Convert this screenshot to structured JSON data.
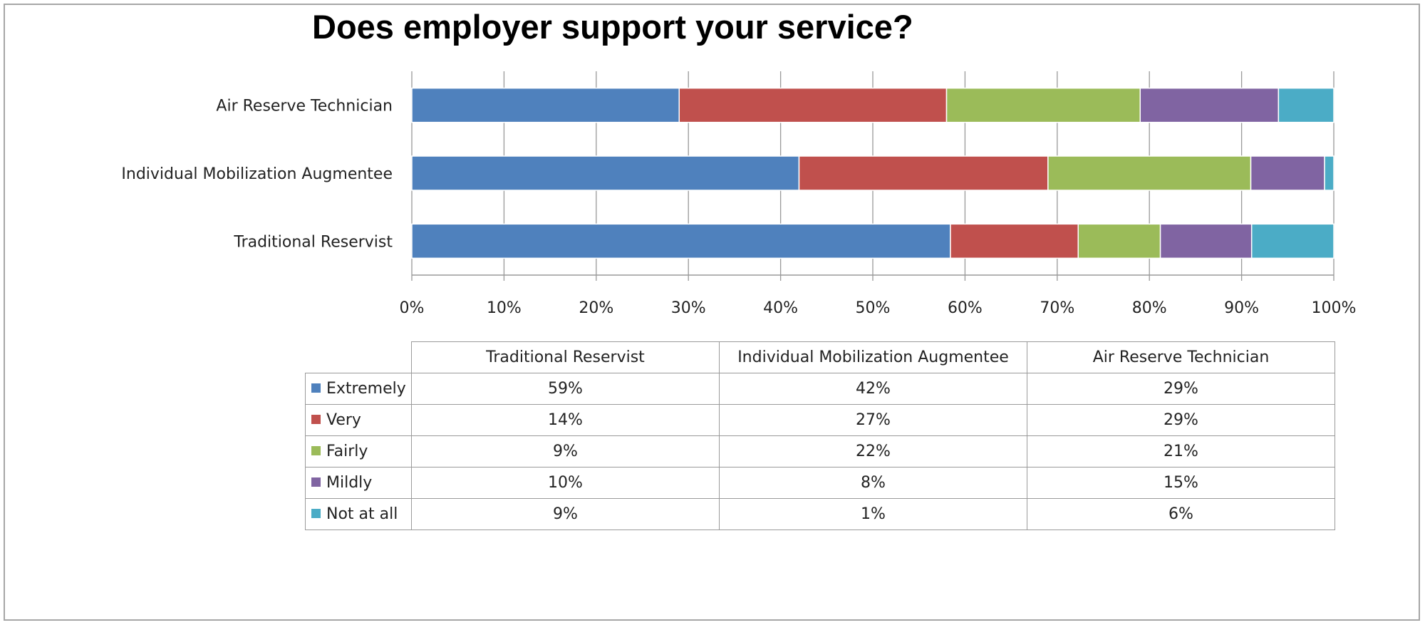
{
  "title": "Does employer support your service?",
  "chart_data": {
    "type": "bar",
    "orientation": "horizontal",
    "stacked": "percent",
    "title": "Does employer support your service?",
    "categories": [
      "Air Reserve Technician",
      "Individual Mobilization Augmentee",
      "Traditional Reservist"
    ],
    "series": [
      {
        "name": "Extremely",
        "color": "#4f81bd",
        "values": [
          29,
          42,
          59
        ]
      },
      {
        "name": "Very",
        "color": "#c0504d",
        "values": [
          29,
          27,
          14
        ]
      },
      {
        "name": "Fairly",
        "color": "#9bbb59",
        "values": [
          21,
          22,
          9
        ]
      },
      {
        "name": "Mildly",
        "color": "#8064a2",
        "values": [
          15,
          8,
          10
        ]
      },
      {
        "name": "Not at all",
        "color": "#4bacc6",
        "values": [
          6,
          1,
          9
        ]
      }
    ],
    "xlim": [
      0,
      100
    ],
    "x_ticks": [
      "0%",
      "10%",
      "20%",
      "30%",
      "40%",
      "50%",
      "60%",
      "70%",
      "80%",
      "90%",
      "100%"
    ],
    "grid": true,
    "legend": "data table below chart"
  },
  "table": {
    "columns": [
      "Traditional Reservist",
      "Individual Mobilization Augmentee",
      "Air Reserve Technician"
    ],
    "rows": [
      {
        "label": "Extremely",
        "cells": [
          "59%",
          "42%",
          "29%"
        ]
      },
      {
        "label": "Very",
        "cells": [
          "14%",
          "27%",
          "29%"
        ]
      },
      {
        "label": "Fairly",
        "cells": [
          "9%",
          "22%",
          "21%"
        ]
      },
      {
        "label": "Mildly",
        "cells": [
          "10%",
          "8%",
          "15%"
        ]
      },
      {
        "label": "Not at all",
        "cells": [
          "9%",
          "1%",
          "6%"
        ]
      }
    ]
  }
}
